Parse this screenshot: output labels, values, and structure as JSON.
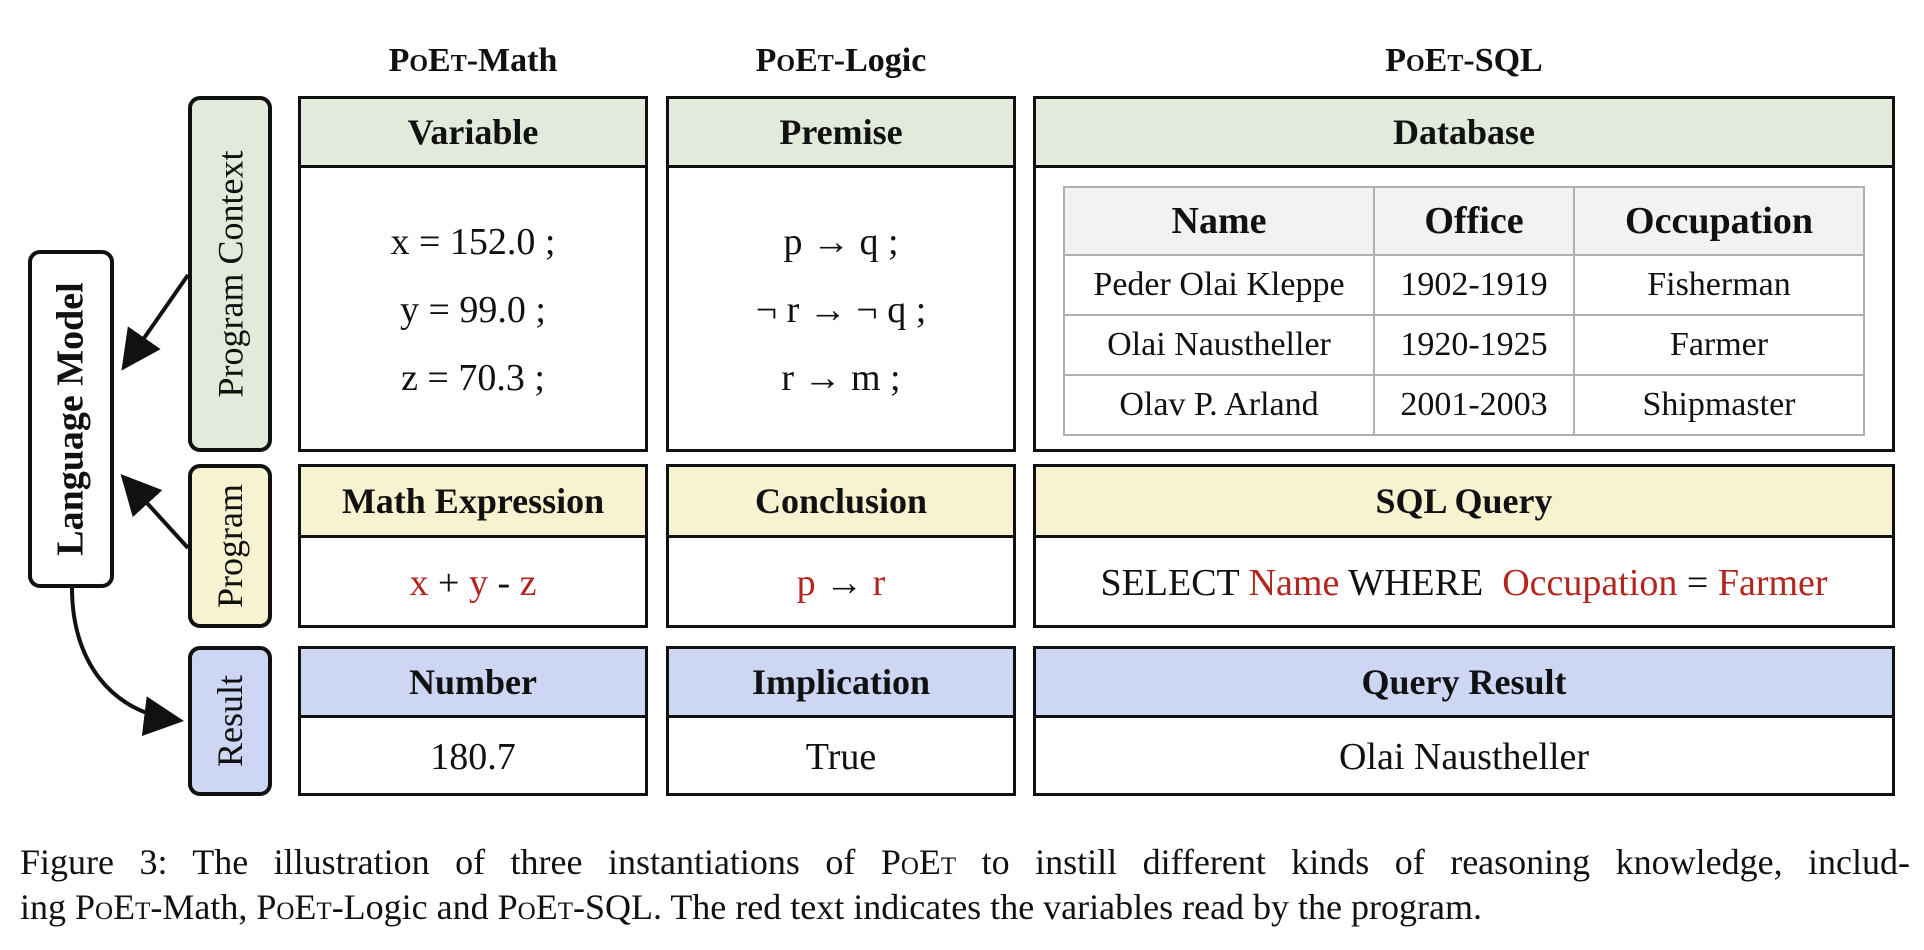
{
  "columns": {
    "math": {
      "title_prefix": "PoEt",
      "title_suffix": "-Math",
      "context_header": "Variable",
      "context_lines": [
        "x = 152.0 ;",
        "y = 99.0 ;",
        "z = 70.3 ;"
      ],
      "program_header": "Math Expression",
      "program_parts": [
        "x",
        " + ",
        "y",
        " - ",
        "z"
      ],
      "result_header": "Number",
      "result_value": "180.7"
    },
    "logic": {
      "title_prefix": "PoEt",
      "title_suffix": "-Logic",
      "context_header": "Premise",
      "context_lines": [
        "p → q ;",
        "¬ r → ¬ q ;",
        "r → m ;"
      ],
      "program_header": "Conclusion",
      "program_parts": [
        "p",
        " → ",
        "r"
      ],
      "result_header": "Implication",
      "result_value": "True"
    },
    "sql": {
      "title_prefix": "PoEt",
      "title_suffix": "-SQL",
      "context_header": "Database",
      "table_headers": [
        "Name",
        "Office",
        "Occupation"
      ],
      "table_rows": [
        [
          "Peder Olai Kleppe",
          "1902-1919",
          "Fisherman"
        ],
        [
          "Olai Naustheller",
          "1920-1925",
          "Farmer"
        ],
        [
          "Olav P. Arland",
          "2001-2003",
          "Shipmaster"
        ]
      ],
      "program_header": "SQL Query",
      "program_parts": [
        "SELECT ",
        "Name",
        " WHERE  ",
        "Occupation",
        " = ",
        "Farmer"
      ],
      "result_header": "Query Result",
      "result_value": "Olai Naustheller"
    }
  },
  "side_labels": {
    "program_context": "Program Context",
    "program": "Program",
    "result": "Result",
    "language_model": "Language Model"
  },
  "caption": {
    "line1_a": "Figure 3: The illustration of three instantiations of ",
    "line1_sc": "PoEt",
    "line1_b": " to instill different kinds of reasoning knowledge, includ-",
    "line2_a": "ing ",
    "line2_sc1": "PoEt",
    "line2_b": "-Math, ",
    "line2_sc2": "PoEt",
    "line2_c": "-Logic and ",
    "line2_sc3": "PoEt",
    "line2_d": "-SQL. The red text indicates the variables read by the program."
  },
  "colors": {
    "context_fill": "#e1eadb",
    "program_fill": "#f7f2cf",
    "result_fill": "#cdd7f3",
    "variable_red": "#b3261e"
  }
}
